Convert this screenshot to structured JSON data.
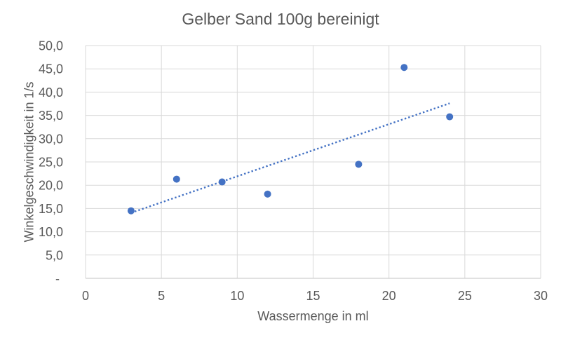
{
  "chart_data": {
    "type": "scatter",
    "title": "Gelber Sand 100g bereinigt",
    "xlabel": "Wassermenge in ml",
    "ylabel": "Winkelgeschwindigkeit in 1/s",
    "x": [
      3,
      6,
      9,
      12,
      18,
      21,
      24
    ],
    "y": [
      14.5,
      21.3,
      20.7,
      18.1,
      24.5,
      45.3,
      34.7
    ],
    "xlim": [
      0,
      30
    ],
    "ylim": [
      0,
      50
    ],
    "x_ticks": [
      {
        "value": 0,
        "label": "0"
      },
      {
        "value": 5,
        "label": "5"
      },
      {
        "value": 10,
        "label": "10"
      },
      {
        "value": 15,
        "label": "15"
      },
      {
        "value": 20,
        "label": "20"
      },
      {
        "value": 25,
        "label": "25"
      },
      {
        "value": 30,
        "label": "30"
      }
    ],
    "y_ticks": [
      {
        "value": 0,
        "label": "-"
      },
      {
        "value": 5,
        "label": "5,0"
      },
      {
        "value": 10,
        "label": "10,0"
      },
      {
        "value": 15,
        "label": "15,0"
      },
      {
        "value": 20,
        "label": "20,0"
      },
      {
        "value": 25,
        "label": "25,0"
      },
      {
        "value": 30,
        "label": "30,0"
      },
      {
        "value": 35,
        "label": "35,0"
      },
      {
        "value": 40,
        "label": "40,0"
      },
      {
        "value": 45,
        "label": "45,0"
      },
      {
        "value": 50,
        "label": "50,0"
      }
    ],
    "grid": true,
    "legend": false,
    "trendline": {
      "type": "linear",
      "style": "dotted",
      "slope": 1.12,
      "intercept": 10.71,
      "x_start": 3,
      "x_end": 24
    },
    "marker_radius": 5,
    "colors": {
      "marker": "#4472C4",
      "trendline": "#4472C4",
      "gridline": "#D9D9D9",
      "axis_line": "#CFCFCF",
      "text": "#595959",
      "background": "#FFFFFF"
    }
  }
}
